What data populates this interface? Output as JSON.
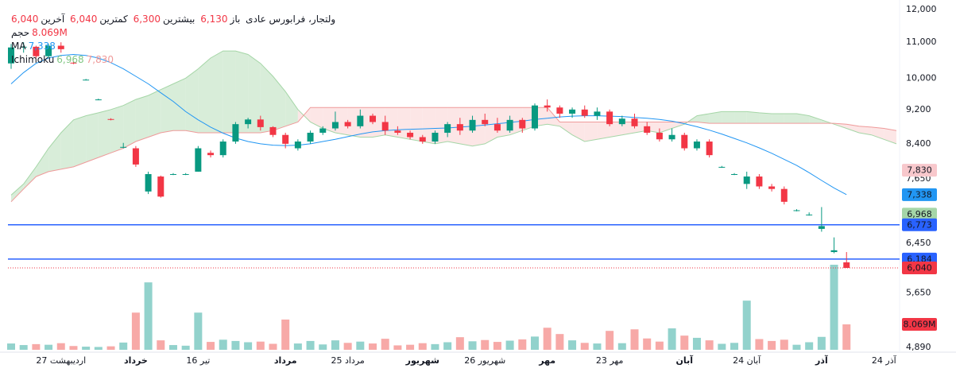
{
  "header": {
    "symbol": "ولتجار، فرابورس عادی",
    "stats": [
      {
        "label": "باز",
        "value": "6,130"
      },
      {
        "label": "بیشترین",
        "value": "6,300"
      },
      {
        "label": "کمترین",
        "value": "6,040"
      },
      {
        "label": "آخرین",
        "value": "6,040"
      }
    ],
    "volume_value": "8.069M",
    "ma_value": "7,338",
    "ichimoku_values": [
      "6,968",
      "7,830"
    ]
  },
  "chart_data": {
    "type": "candlestick",
    "log_scale": true,
    "categories": [
      null,
      null,
      null,
      null,
      "27 اردیبهشت",
      null,
      null,
      null,
      null,
      null,
      "خرداد",
      null,
      null,
      null,
      null,
      "16 تیر",
      null,
      null,
      null,
      null,
      null,
      null,
      "مرداد",
      null,
      null,
      null,
      null,
      "25 مرداد",
      null,
      null,
      null,
      null,
      null,
      "شهریور",
      null,
      null,
      null,
      null,
      "26 شهریور",
      null,
      null,
      null,
      null,
      "مهر",
      null,
      null,
      null,
      null,
      "23 مهر",
      null,
      null,
      null,
      null,
      null,
      "آبان",
      null,
      null,
      null,
      null,
      "24 آبان",
      null,
      null,
      null,
      null,
      null,
      "آذر",
      null,
      null,
      null,
      null,
      "24 آذر",
      null
    ],
    "open": [
      10400,
      10850,
      10870,
      10600,
      10900,
      10420,
      9960,
      9450,
      8970,
      8330,
      8300,
      7400,
      7700,
      7750,
      7750,
      7800,
      8200,
      8150,
      8450,
      8850,
      8960,
      8780,
      8600,
      8300,
      8450,
      8650,
      8750,
      8900,
      8800,
      9050,
      8900,
      8700,
      8650,
      8550,
      8450,
      8650,
      8850,
      8700,
      8950,
      8850,
      8700,
      8950,
      8750,
      9300,
      9250,
      9100,
      9200,
      9050,
      9150,
      8850,
      8980,
      8800,
      8650,
      8500,
      8600,
      8300,
      8450,
      7900,
      7750,
      7550,
      7700,
      7500,
      7450,
      7040,
      6960,
      6700,
      6300,
      6130,
      null,
      null,
      null,
      null
    ],
    "high": [
      10950,
      11000,
      10900,
      10950,
      11000,
      10450,
      9980,
      9470,
      8990,
      8420,
      8350,
      7800,
      7720,
      7770,
      7770,
      8350,
      8250,
      8500,
      8900,
      9000,
      9050,
      8800,
      8650,
      8500,
      8700,
      8800,
      9150,
      8950,
      9200,
      9100,
      9050,
      8800,
      8700,
      8600,
      8700,
      8900,
      9000,
      9050,
      9100,
      9000,
      9050,
      9000,
      9350,
      9450,
      9300,
      9250,
      9300,
      9250,
      9200,
      9050,
      9100,
      8900,
      8750,
      8750,
      8650,
      8500,
      8500,
      7920,
      7770,
      7800,
      7750,
      7550,
      7500,
      7060,
      7000,
      7100,
      6550,
      6300,
      null,
      null,
      null,
      null
    ],
    "low": [
      10250,
      10700,
      10550,
      10550,
      10700,
      10380,
      9940,
      9430,
      8940,
      8300,
      7900,
      7350,
      7280,
      7730,
      7730,
      7800,
      8100,
      8100,
      8400,
      8750,
      8700,
      8550,
      8300,
      8250,
      8400,
      8600,
      8700,
      8750,
      8750,
      8850,
      8600,
      8600,
      8500,
      8400,
      8400,
      8550,
      8600,
      8650,
      8800,
      8650,
      8650,
      8650,
      8700,
      9150,
      9000,
      9000,
      9000,
      8950,
      8800,
      8800,
      8750,
      8600,
      8450,
      8450,
      8250,
      8250,
      8100,
      7880,
      7730,
      7450,
      7450,
      7400,
      7150,
      7020,
      6940,
      6650,
      6280,
      6040,
      null,
      null,
      null,
      null
    ],
    "close": [
      10850,
      10870,
      10600,
      10900,
      10800,
      10400,
      9960,
      9450,
      8960,
      8330,
      7950,
      7750,
      7300,
      7750,
      7750,
      8300,
      8150,
      8450,
      8850,
      8960,
      8780,
      8600,
      8400,
      8450,
      8650,
      8750,
      8900,
      8800,
      9050,
      8900,
      8700,
      8650,
      8550,
      8450,
      8650,
      8850,
      8700,
      8950,
      8850,
      8700,
      8950,
      8750,
      9300,
      9250,
      9100,
      9200,
      9050,
      9150,
      8850,
      8980,
      8800,
      8650,
      8500,
      8600,
      8300,
      8450,
      8150,
      7900,
      7750,
      7700,
      7500,
      7450,
      7200,
      7040,
      6960,
      6750,
      6330,
      6040,
      null,
      null,
      null,
      null
    ],
    "volume_name": "حجم",
    "volume": [
      2000000,
      1500000,
      1800000,
      1600000,
      2100000,
      1200000,
      1000000,
      900000,
      1100000,
      2300000,
      11800000,
      21400000,
      3000000,
      1500000,
      1300000,
      11800000,
      2500000,
      3200000,
      2800000,
      2400000,
      2600000,
      1900000,
      9600000,
      2000000,
      2800000,
      1700000,
      3000000,
      2200000,
      2600000,
      2000000,
      3500000,
      1400000,
      1600000,
      2100000,
      1800000,
      2400000,
      4000000,
      2700000,
      3100000,
      2500000,
      2900000,
      3300000,
      4200000,
      7000000,
      5000000,
      3000000,
      2200000,
      2000000,
      6000000,
      2100000,
      6500000,
      3600000,
      2600000,
      6800000,
      4500000,
      3800000,
      3000000,
      1900000,
      2200000,
      15600000,
      3400000,
      2800000,
      3200000,
      1600000,
      2400000,
      4100000,
      27000000,
      8069000,
      null,
      null,
      null,
      null
    ],
    "up_color": "#089981",
    "down_color": "#f23645",
    "volume_up_color": "#92d2cc",
    "volume_down_color": "#f7a9a7",
    "ma": {
      "name": "MA",
      "color": "#2196f3",
      "values": [
        9850,
        10150,
        10400,
        10550,
        10620,
        10650,
        10620,
        10550,
        10420,
        10250,
        10050,
        9850,
        9620,
        9400,
        9150,
        8950,
        8780,
        8640,
        8530,
        8450,
        8400,
        8370,
        8360,
        8370,
        8400,
        8450,
        8500,
        8560,
        8620,
        8670,
        8700,
        8720,
        8730,
        8740,
        8750,
        8760,
        8780,
        8800,
        8830,
        8860,
        8890,
        8920,
        8960,
        8990,
        9020,
        9040,
        9050,
        9050,
        9040,
        9030,
        9010,
        8990,
        8960,
        8920,
        8860,
        8790,
        8710,
        8620,
        8520,
        8420,
        8310,
        8190,
        8060,
        7930,
        7780,
        7620,
        7470,
        7338,
        null,
        null,
        null,
        null
      ]
    },
    "ichimoku": {
      "name": "Ichimoku",
      "up_fill": "#c8e6c9",
      "down_fill": "#fbdcdc",
      "span_a": {
        "color": "#a5d6a7",
        "values": [
          7330,
          7550,
          7900,
          8300,
          8650,
          8950,
          9050,
          9120,
          9200,
          9300,
          9450,
          9550,
          9700,
          9850,
          10000,
          10250,
          10550,
          10750,
          10750,
          10650,
          10400,
          10050,
          9650,
          9200,
          8900,
          8750,
          8650,
          8600,
          8550,
          8550,
          8600,
          8550,
          8500,
          8450,
          8400,
          8450,
          8400,
          8350,
          8400,
          8550,
          8600,
          8700,
          8800,
          8850,
          8800,
          8600,
          8450,
          8500,
          8550,
          8600,
          8650,
          8700,
          8650,
          8750,
          8850,
          9050,
          9100,
          9150,
          9150,
          9150,
          9120,
          9100,
          9100,
          9100,
          9050,
          8950,
          8850,
          8750,
          8650,
          8600,
          8500,
          8400
        ]
      },
      "span_b": {
        "color": "#ef9a9a",
        "values": [
          7200,
          7450,
          7700,
          7800,
          7850,
          7900,
          8000,
          8100,
          8200,
          8300,
          8450,
          8550,
          8650,
          8700,
          8700,
          8650,
          8650,
          8650,
          8650,
          8650,
          8650,
          8700,
          8800,
          8900,
          9250,
          9250,
          9250,
          9250,
          9250,
          9250,
          9250,
          9250,
          9250,
          9250,
          9250,
          9250,
          9250,
          9250,
          9250,
          9250,
          9250,
          9250,
          9250,
          9250,
          8900,
          8900,
          8900,
          8900,
          8900,
          8900,
          8900,
          8900,
          8900,
          8900,
          8900,
          8900,
          8870,
          8870,
          8870,
          8870,
          8870,
          8870,
          8870,
          8870,
          8870,
          8870,
          8870,
          8850,
          8800,
          8780,
          8750,
          8700
        ]
      }
    },
    "hlines": [
      {
        "value": 6773,
        "label": "6,773",
        "color": "#2962ff"
      },
      {
        "value": 6184,
        "label": "6,184",
        "color": "#2962ff"
      }
    ],
    "price_labels": [
      {
        "value": 7830,
        "label": "7,830",
        "color": "#f8c8cc",
        "text_color": "#131722"
      },
      {
        "value": 7338,
        "label": "7,338",
        "color": "#2196f3",
        "text_color": "#ffffff"
      },
      {
        "value": 6968,
        "label": "6,968",
        "color": "#a5d6a7",
        "text_color": "#131722"
      }
    ],
    "last": {
      "value": 6040,
      "label": "6,040",
      "color": "#f23645"
    },
    "volume_badge": {
      "value": 8069000,
      "label": "8.069M",
      "color": "#f23645"
    },
    "ylim": [
      4890,
      12000
    ],
    "yticks": [
      {
        "value": 12000,
        "label": "12,000"
      },
      {
        "value": 11000,
        "label": "11,000"
      },
      {
        "value": 10000,
        "label": "10,000"
      },
      {
        "value": 9200,
        "label": "9,200"
      },
      {
        "value": 8400,
        "label": "8,400"
      },
      {
        "value": 7650,
        "label": "7,650"
      },
      {
        "value": 6450,
        "label": "6,450"
      },
      {
        "value": 5650,
        "label": "5,650"
      },
      {
        "value": 4890,
        "label": "4,890"
      }
    ]
  }
}
